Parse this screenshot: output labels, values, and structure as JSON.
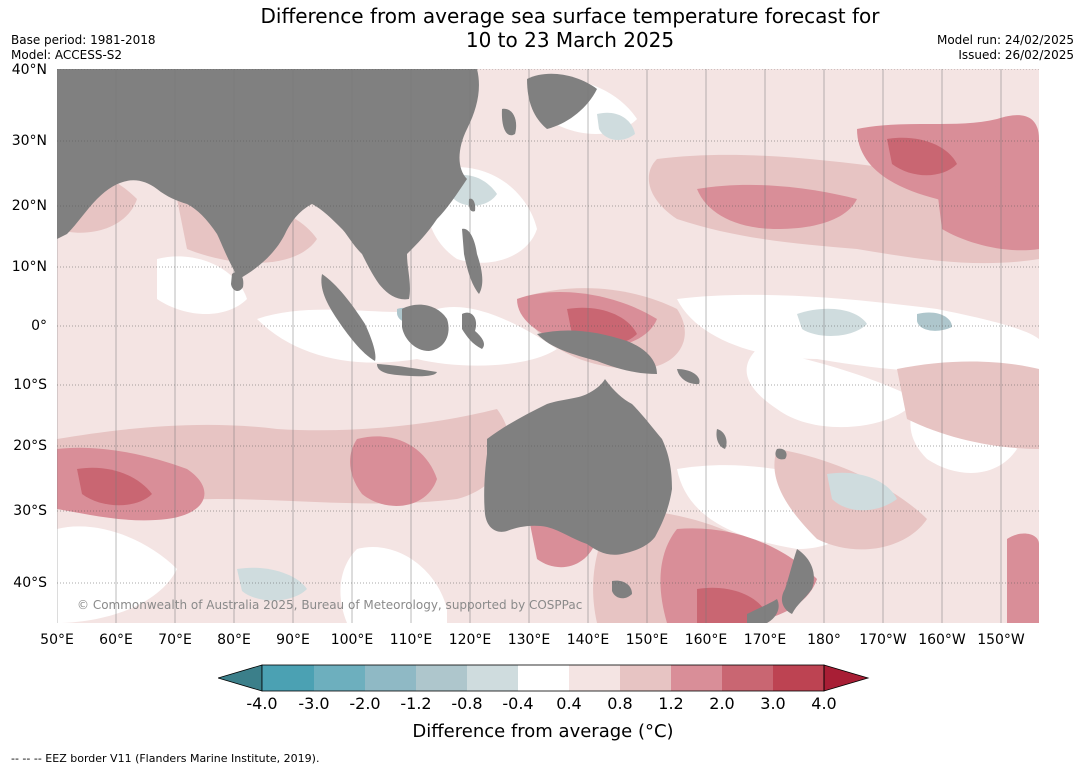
{
  "header": {
    "title_line1": "Difference from average sea surface temperature forecast for",
    "title_line2": "10 to 23 March 2025",
    "base_period": "Base period: 1981-2018",
    "model": "Model: ACCESS-S2",
    "model_run": "Model run: 24/02/2025",
    "issued": "Issued: 26/02/2025"
  },
  "map": {
    "lat_labels": [
      "40°N",
      "30°N",
      "20°N",
      "10°N",
      "0°",
      "10°S",
      "20°S",
      "30°S",
      "40°S"
    ],
    "lon_labels": [
      "50°E",
      "60°E",
      "70°E",
      "80°E",
      "90°E",
      "100°E",
      "110°E",
      "120°E",
      "130°E",
      "140°E",
      "150°E",
      "160°E",
      "170°E",
      "180°",
      "170°W",
      "160°W",
      "150°W"
    ],
    "copyright": "© Commonwealth of Australia 2025, Bureau of Meteorology, supported by COSPPac",
    "land_color": "#808080"
  },
  "colorbar": {
    "title": "Difference from average (°C)",
    "tick_labels": [
      "-4.0",
      "-3.0",
      "-2.0",
      "-1.2",
      "-0.8",
      "-0.4",
      "0.4",
      "0.8",
      "1.2",
      "2.0",
      "3.0",
      "4.0"
    ],
    "colors": [
      "#3b7f8a",
      "#4ba1b3",
      "#6dafbe",
      "#8fb9c5",
      "#aec6cc",
      "#cfdcde",
      "#ffffff",
      "#f4e4e3",
      "#e7c4c3",
      "#d98e98",
      "#c96672",
      "#bd4352",
      "#a81e35"
    ]
  },
  "footnote": "--  --  -- EEZ border V11 (Flanders Marine Institute, 2019)."
}
